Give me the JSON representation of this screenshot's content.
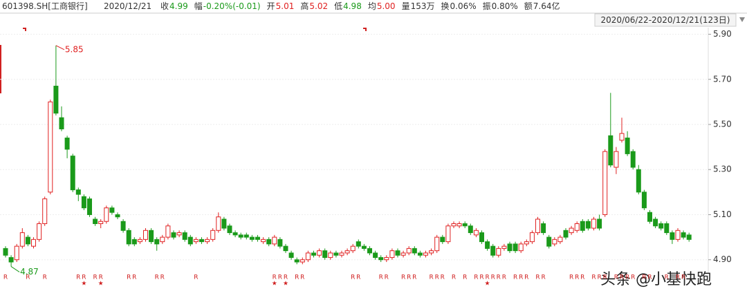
{
  "header": {
    "code": "601398.SH[工商银行]",
    "date": "2020/12/21",
    "fields": [
      {
        "label": "收",
        "value": "4.99",
        "color": "#1a9a1a"
      },
      {
        "label": "幅",
        "value": "-0.20%(-0.01)",
        "color": "#1a9a1a"
      },
      {
        "label": "开",
        "value": "5.01",
        "color": "#e02020"
      },
      {
        "label": "高",
        "value": "5.02",
        "color": "#e02020"
      },
      {
        "label": "低",
        "value": "4.98",
        "color": "#1a9a1a"
      },
      {
        "label": "均",
        "value": "5.00",
        "color": "#e02020"
      },
      {
        "label": "量",
        "value": "153万",
        "color": "#333333"
      },
      {
        "label": "换",
        "value": "0.06%",
        "color": "#333333"
      },
      {
        "label": "振",
        "value": "0.80%",
        "color": "#333333"
      },
      {
        "label": "额",
        "value": "7.64亿",
        "color": "#333333"
      }
    ],
    "range": "2020/06/22-2020/12/21(123日)"
  },
  "chart_data": {
    "type": "candlestick",
    "up_color": "#e02020",
    "down_color": "#1a9a1a",
    "grid": true,
    "ylim": [
      4.85,
      5.92
    ],
    "yticks": [
      {
        "value": 5.9,
        "label": "5.90"
      },
      {
        "value": 5.7,
        "label": "5.70"
      },
      {
        "value": 5.5,
        "label": "5.50"
      },
      {
        "value": 5.3,
        "label": "5.30"
      },
      {
        "value": 5.1,
        "label": "5.10"
      },
      {
        "value": 4.9,
        "label": "4.90"
      }
    ],
    "open": [
      4.95,
      4.91,
      4.9,
      4.96,
      5.0,
      4.96,
      4.99,
      5.06,
      5.2,
      5.67,
      5.53,
      5.44,
      5.36,
      5.21,
      5.18,
      5.17,
      5.08,
      5.06,
      5.07,
      5.13,
      5.1,
      5.07,
      5.03,
      4.99,
      4.98,
      4.99,
      5.03,
      4.99,
      4.98,
      5.0,
      5.02,
      5.01,
      5.02,
      5.0,
      4.98,
      4.99,
      4.98,
      4.99,
      5.03,
      5.08,
      5.05,
      5.02,
      5.01,
      5.01,
      5.0,
      5.0,
      4.98,
      4.99,
      4.97,
      4.99,
      4.96,
      4.93,
      4.9,
      4.89,
      4.9,
      4.93,
      4.92,
      4.94,
      4.91,
      4.93,
      4.92,
      4.93,
      4.94,
      4.98,
      4.96,
      4.95,
      4.93,
      4.91,
      4.9,
      4.91,
      4.94,
      4.92,
      4.93,
      4.95,
      4.93,
      4.92,
      4.93,
      4.94,
      5.0,
      4.98,
      5.05,
      5.05,
      5.06,
      5.05,
      5.01,
      5.02,
      4.98,
      4.96,
      4.92,
      4.95,
      4.97,
      4.97,
      4.94,
      4.97,
      4.98,
      5.02,
      5.06,
      5.0,
      4.97,
      4.98,
      5.03,
      5.02,
      5.03,
      5.07,
      5.07,
      5.04,
      5.08,
      5.1,
      5.45,
      5.31,
      5.43,
      5.44,
      5.38,
      5.3,
      5.2,
      5.11,
      5.08,
      5.06,
      5.06,
      5.02,
      4.99,
      5.02,
      5.01
    ],
    "high": [
      4.96,
      4.92,
      4.97,
      5.04,
      5.01,
      5.0,
      5.07,
      5.18,
      5.61,
      5.85,
      5.58,
      5.45,
      5.37,
      5.22,
      5.19,
      5.18,
      5.09,
      5.08,
      5.14,
      5.14,
      5.11,
      5.08,
      5.04,
      5.0,
      5.0,
      5.04,
      5.04,
      5.0,
      5.01,
      5.06,
      5.03,
      5.03,
      5.03,
      5.01,
      5.0,
      5.0,
      5.0,
      5.04,
      5.11,
      5.09,
      5.06,
      5.03,
      5.02,
      5.02,
      5.01,
      5.01,
      5.0,
      5.0,
      5.01,
      5.0,
      4.97,
      4.94,
      4.91,
      4.91,
      4.94,
      4.94,
      4.95,
      4.95,
      4.94,
      4.94,
      4.94,
      4.95,
      4.97,
      4.99,
      4.97,
      4.96,
      4.94,
      4.92,
      4.92,
      4.95,
      4.95,
      4.94,
      4.96,
      4.96,
      4.94,
      4.94,
      4.95,
      5.01,
      5.01,
      5.06,
      5.07,
      5.07,
      5.07,
      5.06,
      5.04,
      5.03,
      4.99,
      4.97,
      4.96,
      4.97,
      4.98,
      4.98,
      4.98,
      4.99,
      5.03,
      5.09,
      5.07,
      5.01,
      5.0,
      5.01,
      5.04,
      5.05,
      5.07,
      5.08,
      5.08,
      5.09,
      5.1,
      5.39,
      5.64,
      5.4,
      5.53,
      5.47,
      5.39,
      5.32,
      5.21,
      5.12,
      5.09,
      5.07,
      5.07,
      5.03,
      5.04,
      5.03,
      5.02
    ],
    "low": [
      4.91,
      4.87,
      4.89,
      4.95,
      4.96,
      4.95,
      4.98,
      5.05,
      5.19,
      5.54,
      5.47,
      5.35,
      5.2,
      5.16,
      5.12,
      5.09,
      5.05,
      5.04,
      5.06,
      5.1,
      5.08,
      5.02,
      4.96,
      4.96,
      4.97,
      4.98,
      4.97,
      4.94,
      4.97,
      4.99,
      4.99,
      5.0,
      4.98,
      4.96,
      4.97,
      4.97,
      4.97,
      4.98,
      5.02,
      5.03,
      5.01,
      5.0,
      4.99,
      4.99,
      4.98,
      4.98,
      4.97,
      4.96,
      4.96,
      4.95,
      4.93,
      4.9,
      4.88,
      4.88,
      4.89,
      4.91,
      4.91,
      4.9,
      4.9,
      4.91,
      4.91,
      4.92,
      4.93,
      4.95,
      4.94,
      4.92,
      4.9,
      4.89,
      4.89,
      4.9,
      4.91,
      4.91,
      4.92,
      4.92,
      4.91,
      4.91,
      4.92,
      4.93,
      4.97,
      4.97,
      5.04,
      5.04,
      5.04,
      5.01,
      5.0,
      4.97,
      4.94,
      4.91,
      4.91,
      4.94,
      4.93,
      4.93,
      4.93,
      4.96,
      4.97,
      5.01,
      5.01,
      4.95,
      4.96,
      4.97,
      4.99,
      5.01,
      5.02,
      5.02,
      5.03,
      5.03,
      5.03,
      5.09,
      5.31,
      5.28,
      5.42,
      5.36,
      5.3,
      5.19,
      5.12,
      5.06,
      5.04,
      5.03,
      5.01,
      4.97,
      4.98,
      4.99,
      4.98
    ],
    "close": [
      4.92,
      4.89,
      4.96,
      5.02,
      4.97,
      4.99,
      5.06,
      5.17,
      5.6,
      5.55,
      5.48,
      5.39,
      5.21,
      5.19,
      5.13,
      5.1,
      5.06,
      5.07,
      5.13,
      5.11,
      5.09,
      5.03,
      4.97,
      4.97,
      4.99,
      5.03,
      4.98,
      4.97,
      5.0,
      5.05,
      5.0,
      5.02,
      4.99,
      4.97,
      4.99,
      4.98,
      4.99,
      5.03,
      5.09,
      5.04,
      5.02,
      5.01,
      5.0,
      5.0,
      4.99,
      4.99,
      4.99,
      4.97,
      5.0,
      4.96,
      4.94,
      4.91,
      4.89,
      4.9,
      4.93,
      4.92,
      4.94,
      4.91,
      4.93,
      4.92,
      4.93,
      4.94,
      4.96,
      4.96,
      4.95,
      4.93,
      4.91,
      4.9,
      4.91,
      4.94,
      4.92,
      4.93,
      4.95,
      4.93,
      4.92,
      4.93,
      4.94,
      5.0,
      4.98,
      5.05,
      5.06,
      5.06,
      5.05,
      5.02,
      5.03,
      4.98,
      4.95,
      4.92,
      4.95,
      4.96,
      4.94,
      4.94,
      4.97,
      4.98,
      5.02,
      5.08,
      5.02,
      4.96,
      4.99,
      5.0,
      5.0,
      5.04,
      5.06,
      5.03,
      5.04,
      5.08,
      5.04,
      5.38,
      5.32,
      5.38,
      5.46,
      5.37,
      5.31,
      5.2,
      5.13,
      5.07,
      5.05,
      5.04,
      5.02,
      4.99,
      5.03,
      5.0,
      4.99
    ],
    "max_label": 5.85,
    "min_label": 4.87,
    "flags": [
      "R",
      null,
      null,
      null,
      "R",
      null,
      null,
      "R",
      null,
      null,
      null,
      null,
      null,
      "R",
      "R",
      null,
      "R",
      "R",
      null,
      null,
      null,
      null,
      "R",
      "R",
      null,
      null,
      null,
      "R",
      "R",
      null,
      null,
      null,
      null,
      null,
      "R",
      null,
      null,
      null,
      null,
      null,
      null,
      null,
      null,
      null,
      null,
      null,
      null,
      null,
      "R",
      "R",
      "R",
      null,
      "R",
      "R",
      null,
      null,
      null,
      null,
      null,
      null,
      null,
      null,
      "R",
      "R",
      null,
      null,
      null,
      "R",
      "R",
      null,
      null,
      "R",
      "R",
      "R",
      null,
      null,
      "R",
      "R",
      "R",
      null,
      "R",
      null,
      "R",
      null,
      "R",
      "R",
      "R",
      "R",
      "R",
      "R",
      null,
      "R",
      "R",
      "R",
      null,
      "R",
      "R",
      null,
      null,
      null,
      null,
      "R",
      "R",
      "R",
      null,
      "R",
      "R",
      "R",
      null,
      "R",
      "R",
      "R",
      "R",
      null,
      "R",
      "R",
      null,
      null,
      "R",
      null,
      "R",
      "R",
      null
    ],
    "stars": [
      null,
      null,
      null,
      null,
      null,
      null,
      null,
      null,
      null,
      null,
      null,
      null,
      null,
      null,
      "★",
      null,
      null,
      "★",
      null,
      null,
      null,
      null,
      null,
      null,
      null,
      null,
      null,
      null,
      null,
      null,
      null,
      null,
      null,
      null,
      null,
      null,
      null,
      null,
      null,
      null,
      null,
      null,
      null,
      null,
      null,
      null,
      null,
      null,
      "★",
      null,
      "★",
      null,
      null,
      null,
      null,
      null,
      null,
      null,
      null,
      null,
      null,
      null,
      null,
      null,
      null,
      null,
      null,
      null,
      null,
      null,
      null,
      null,
      null,
      null,
      null,
      null,
      null,
      null,
      null,
      null,
      null,
      null,
      null,
      null,
      null,
      null,
      "★",
      null,
      null,
      null,
      null,
      null,
      null,
      null,
      null,
      null,
      null,
      null,
      null,
      null,
      null,
      null,
      null,
      null,
      null,
      null,
      null,
      null,
      null,
      null,
      null,
      null,
      null,
      null,
      null,
      null,
      null,
      null,
      null,
      null,
      null,
      null,
      null,
      null,
      null,
      null,
      null
    ]
  },
  "watermark": "头条 @小基快跑"
}
